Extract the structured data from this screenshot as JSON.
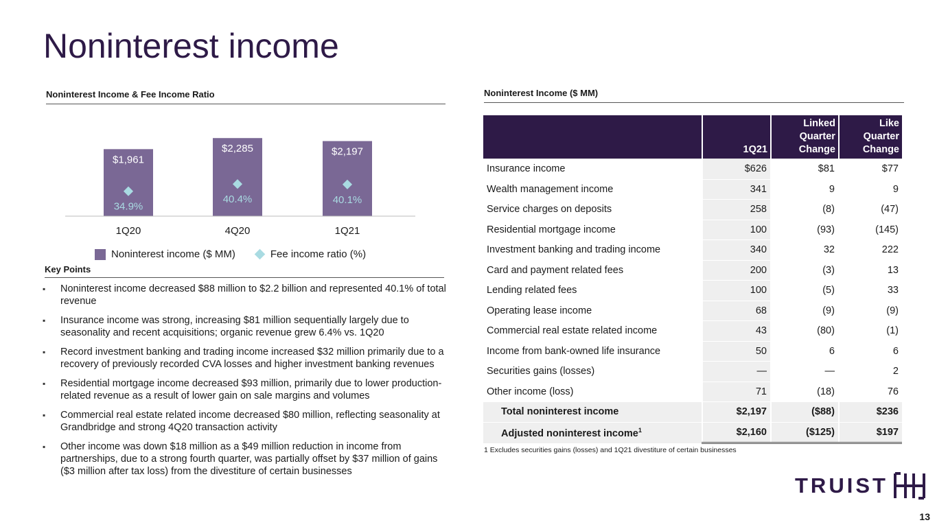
{
  "title": "Noninterest income",
  "chart_section_title": "Noninterest Income & Fee Income Ratio",
  "table_section_title": "Noninterest Income ($ MM)",
  "key_points_title": "Key Points",
  "chart_data": {
    "type": "bar",
    "categories": [
      "1Q20",
      "4Q20",
      "1Q21"
    ],
    "series": [
      {
        "name": "Noninterest income ($ MM)",
        "type": "bar",
        "values": [
          1961,
          2285,
          2197
        ],
        "labels": [
          "$1,961",
          "$2,285",
          "$2,197"
        ],
        "color": "#7a6895"
      },
      {
        "name": "Fee income ratio (%)",
        "type": "scatter",
        "marker": "diamond",
        "values": [
          34.9,
          40.4,
          40.1
        ],
        "labels": [
          "34.9%",
          "40.4%",
          "40.1%"
        ],
        "color": "#a9dbe2"
      }
    ],
    "ylim": [
      0,
      2500
    ],
    "legend": "bottom"
  },
  "key_points": [
    "Noninterest income decreased $88 million to $2.2 billion and represented 40.1% of total revenue",
    "Insurance income was strong, increasing $81 million sequentially largely due to seasonality and recent acquisitions; organic revenue grew 6.4% vs. 1Q20",
    "Record investment banking and trading income increased $32 million primarily due to a recovery of previously recorded CVA losses and higher investment banking revenues",
    "Residential mortgage income decreased $93 million, primarily due to lower production-related revenue as a result of lower gain on sale margins and volumes",
    "Commercial real estate related income decreased $80 million, reflecting seasonality at Grandbridge and strong 4Q20 transaction activity",
    "Other income was down $18 million as a $49 million reduction in income from partnerships, due to a strong fourth quarter, was partially offset by $37 million of gains ($3 million after tax loss) from the divestiture of certain businesses"
  ],
  "table": {
    "headers": [
      "",
      "1Q21",
      "Linked Quarter Change",
      "Like Quarter Change"
    ],
    "rows": [
      {
        "label": "Insurance income",
        "q": "$626",
        "linked": "$81",
        "like": "$77"
      },
      {
        "label": "Wealth management income",
        "q": "341",
        "linked": "9",
        "like": "9"
      },
      {
        "label": "Service charges on deposits",
        "q": "258",
        "linked": "(8)",
        "like": "(47)"
      },
      {
        "label": "Residential mortgage income",
        "q": "100",
        "linked": "(93)",
        "like": "(145)"
      },
      {
        "label": "Investment banking and trading income",
        "q": "340",
        "linked": "32",
        "like": "222"
      },
      {
        "label": "Card and payment related fees",
        "q": "200",
        "linked": "(3)",
        "like": "13"
      },
      {
        "label": "Lending related fees",
        "q": "100",
        "linked": "(5)",
        "like": "33"
      },
      {
        "label": "Operating lease income",
        "q": "68",
        "linked": "(9)",
        "like": "(9)"
      },
      {
        "label": "Commercial real estate related income",
        "q": "43",
        "linked": "(80)",
        "like": "(1)"
      },
      {
        "label": "Income from bank-owned life insurance",
        "q": "50",
        "linked": "6",
        "like": "6"
      },
      {
        "label": "Securities gains (losses)",
        "q": "—",
        "linked": "—",
        "like": "2"
      },
      {
        "label": "Other income (loss)",
        "q": "71",
        "linked": "(18)",
        "like": "76"
      }
    ],
    "total": {
      "label": "Total noninterest income",
      "q": "$2,197",
      "linked": "($88)",
      "like": "$236"
    },
    "adjusted": {
      "label": "Adjusted noninterest income",
      "sup": "1",
      "q": "$2,160",
      "linked": "($125)",
      "like": "$197"
    }
  },
  "footnote": "1  Excludes securities gains (losses) and 1Q21 divestiture of certain businesses",
  "logo_text": "TRUIST",
  "page_number": "13"
}
